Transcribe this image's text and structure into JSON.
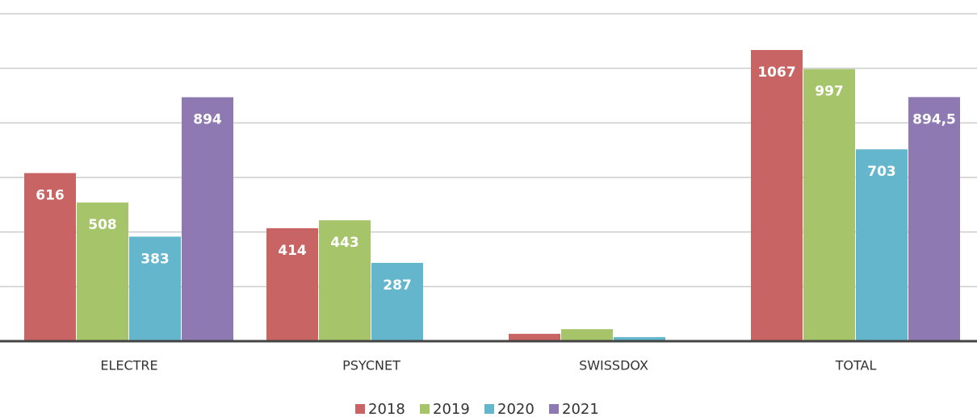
{
  "chart_data": {
    "type": "bar",
    "categories": [
      "ELECTRE",
      "PSYCNET",
      "SWISSDOX",
      "TOTAL"
    ],
    "series": [
      {
        "name": "2018",
        "color": "#c96464",
        "values": [
          616,
          414,
          27,
          1067
        ],
        "value_labels": [
          "616",
          "414",
          null,
          "1067"
        ]
      },
      {
        "name": "2019",
        "color": "#a6c46a",
        "values": [
          508,
          443,
          44,
          997
        ],
        "value_labels": [
          "508",
          "443",
          null,
          "997"
        ]
      },
      {
        "name": "2020",
        "color": "#63b6cc",
        "values": [
          383,
          287,
          15,
          703
        ],
        "value_labels": [
          "383",
          "287",
          null,
          "703"
        ]
      },
      {
        "name": "2021",
        "color": "#8f79b3",
        "values": [
          894,
          null,
          null,
          894.5
        ],
        "value_labels": [
          "894",
          null,
          null,
          "894,5"
        ]
      }
    ],
    "ylim": [
      0,
      1200
    ],
    "yticks": [
      0,
      200,
      400,
      600,
      800,
      1000,
      1200
    ],
    "grid": true,
    "legend": "bottom"
  }
}
